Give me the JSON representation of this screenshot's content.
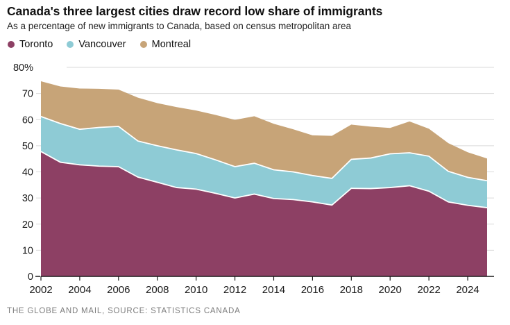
{
  "footer": {
    "credit": "THE GLOBE AND MAIL, SOURCE: STATISTICS CANADA"
  },
  "colors": {
    "toronto": "#8d4064",
    "vancouver": "#8ecbd5",
    "montreal": "#c7a478",
    "grid": "#d9d9d9",
    "axis": "#1a1a1a",
    "separator": "#ffffff",
    "tick_label": "#1a1a1a"
  },
  "chart_data": {
    "type": "area",
    "stacked": true,
    "title": "Canada's three largest cities draw record low share of immigrants",
    "subtitle": "As a percentage of new immigrants to Canada, based on census metropolitan area",
    "x": [
      2002,
      2003,
      2004,
      2005,
      2006,
      2007,
      2008,
      2009,
      2010,
      2011,
      2012,
      2013,
      2014,
      2015,
      2016,
      2017,
      2018,
      2019,
      2020,
      2021,
      2022,
      2023,
      2024,
      2025
    ],
    "series": [
      {
        "name": "Toronto",
        "color": "#8d4064",
        "values": [
          47.8,
          43.7,
          42.7,
          42.2,
          42.0,
          38.0,
          36.0,
          34.0,
          33.4,
          31.8,
          30.0,
          31.5,
          29.8,
          29.4,
          28.5,
          27.3,
          33.7,
          33.6,
          34.0,
          34.7,
          32.6,
          28.5,
          27.2,
          26.3
        ]
      },
      {
        "name": "Vancouver",
        "color": "#8ecbd5",
        "values": [
          13.4,
          14.8,
          13.6,
          14.8,
          15.4,
          13.8,
          14.0,
          14.4,
          13.6,
          12.8,
          12.0,
          11.8,
          11.0,
          10.6,
          10.1,
          10.2,
          11.1,
          11.7,
          12.9,
          12.6,
          13.4,
          11.7,
          10.7,
          10.3
        ]
      },
      {
        "name": "Montreal",
        "color": "#c7a478",
        "values": [
          13.5,
          14.2,
          15.6,
          14.8,
          14.1,
          16.6,
          16.3,
          16.4,
          16.5,
          17.2,
          17.9,
          18.0,
          17.6,
          16.3,
          15.4,
          16.3,
          13.3,
          12.0,
          9.9,
          12.0,
          10.5,
          10.8,
          9.6,
          8.5
        ]
      }
    ],
    "xlabel": "",
    "ylabel": "",
    "ylim": [
      0,
      80
    ],
    "grid": "horizontal",
    "legend_position": "top",
    "y_ticks": [
      {
        "v": 80,
        "label": "80%"
      },
      {
        "v": 70,
        "label": "70"
      },
      {
        "v": 60,
        "label": "60"
      },
      {
        "v": 50,
        "label": "50"
      },
      {
        "v": 40,
        "label": "40"
      },
      {
        "v": 30,
        "label": "30"
      },
      {
        "v": 20,
        "label": "20"
      },
      {
        "v": 10,
        "label": "10"
      },
      {
        "v": 0,
        "label": "0"
      }
    ],
    "x_ticks": [
      2002,
      2004,
      2006,
      2008,
      2010,
      2012,
      2014,
      2016,
      2018,
      2020,
      2022,
      2024
    ]
  }
}
